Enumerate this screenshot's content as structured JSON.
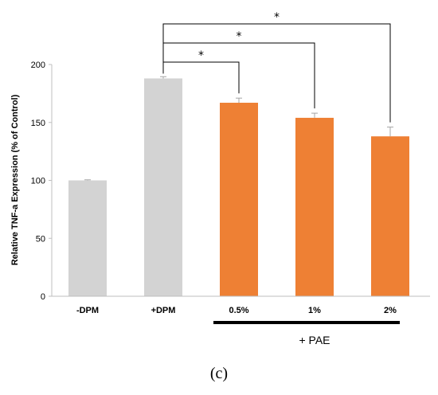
{
  "chart_data": {
    "type": "bar",
    "categories": [
      "-DPM",
      "+DPM",
      "0.5%",
      "1%",
      "2%"
    ],
    "values": [
      100,
      188,
      167,
      154,
      138
    ],
    "errors": [
      0.5,
      1.5,
      4,
      4,
      8
    ],
    "colors": [
      "#d3d3d3",
      "#d3d3d3",
      "#ee8034",
      "#ee8034",
      "#ee8034"
    ],
    "ylabel": "Relative TNF-a Expression (% of Control)",
    "xlabel": "",
    "ylim": [
      0,
      200
    ],
    "yticks": [
      "0",
      "50",
      "100",
      "150",
      "200"
    ],
    "grid": false,
    "group": {
      "label": "+ PAE",
      "categories": [
        "0.5%",
        "1%",
        "2%"
      ]
    },
    "significance": [
      {
        "from": "+DPM",
        "to": "0.5%",
        "label": "*"
      },
      {
        "from": "+DPM",
        "to": "1%",
        "label": "*"
      },
      {
        "from": "+DPM",
        "to": "2%",
        "label": "*"
      }
    ]
  },
  "panel_label": "(c)"
}
